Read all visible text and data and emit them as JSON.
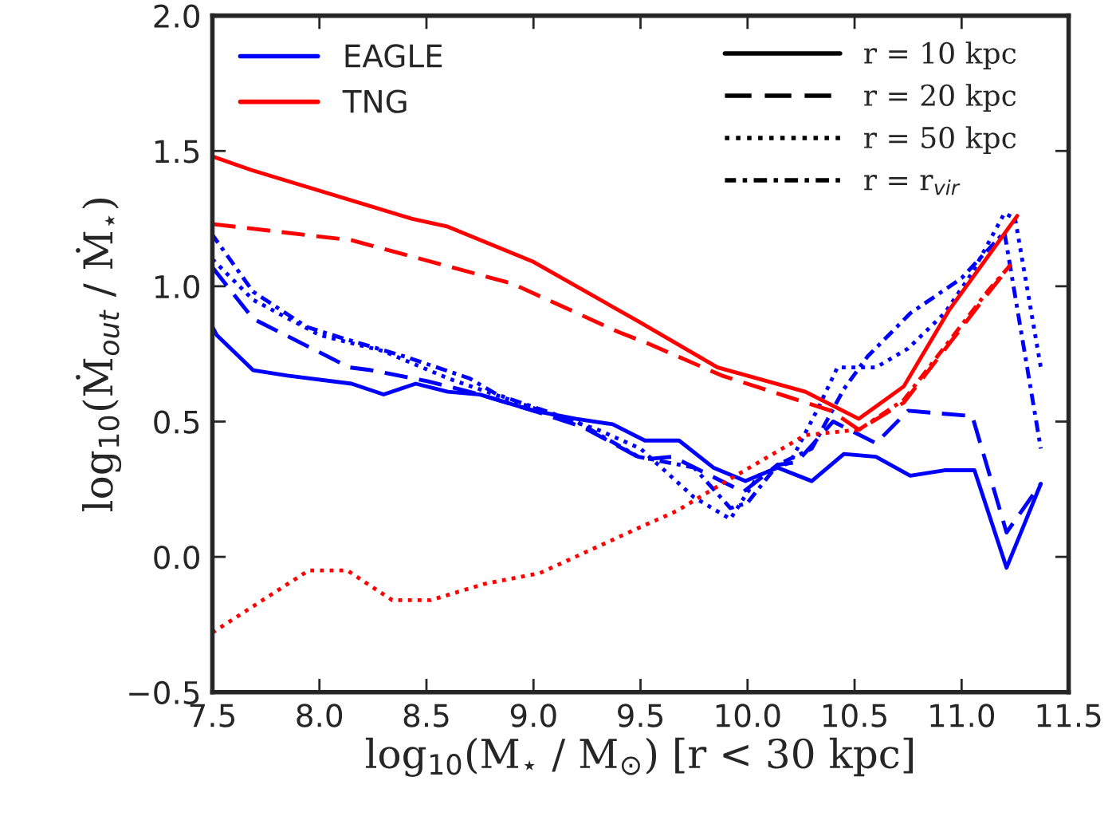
{
  "chart_data": {
    "type": "line",
    "xlabel": "log$_{10}$(M$_{⋆}$ / M$_{⊙}$) [r < 30 kpc]",
    "ylabel": "log$_{10}$(Ṁ$_{out}$ / Ṁ$_{⋆}$)",
    "xlim": [
      7.5,
      11.5
    ],
    "xticks": [
      7.5,
      {
        "value": 8,
        "label": "8.0"
      },
      8.5,
      {
        "value": 9,
        "label": "9.0"
      },
      9.5,
      {
        "value": 10,
        "label": "10.0"
      },
      10.5,
      {
        "value": 11,
        "label": "11.0"
      },
      11.5
    ],
    "ylim": [
      -0.5,
      2.0
    ],
    "yticks": [
      {
        "value": -0.5,
        "label": "−0.5"
      },
      {
        "value": 0,
        "label": "0.0"
      },
      0.5,
      {
        "value": 1,
        "label": "1.0"
      },
      1.5,
      {
        "value": 2,
        "label": "2.0"
      }
    ],
    "grid": false,
    "legend": "top",
    "series": [
      {
        "color": "#0000ff",
        "line_style": "solid",
        "x": [
          7.5,
          7.52,
          7.69,
          7.85,
          8.15,
          8.3,
          8.45,
          8.6,
          8.75,
          9.0,
          9.2,
          9.37,
          9.52,
          9.68,
          9.84,
          9.99,
          10.14,
          10.3,
          10.45,
          10.6,
          10.76,
          10.92,
          11.06,
          11.21,
          11.37
        ],
        "values": [
          0.85,
          0.82,
          0.69,
          0.67,
          0.64,
          0.6,
          0.64,
          0.61,
          0.6,
          0.54,
          0.51,
          0.49,
          0.43,
          0.43,
          0.33,
          0.28,
          0.33,
          0.28,
          0.38,
          0.37,
          0.3,
          0.32,
          0.32,
          -0.04,
          0.27
        ]
      },
      {
        "color": "#0000ff",
        "line_style": "dashed",
        "x": [
          7.5,
          7.69,
          8.14,
          8.24,
          8.5,
          8.75,
          9.0,
          9.23,
          9.51,
          9.65,
          9.98,
          10.14,
          10.23,
          10.4,
          10.6,
          10.75,
          11.05,
          11.21,
          11.37
        ],
        "values": [
          1.07,
          0.88,
          0.7,
          0.69,
          0.65,
          0.6,
          0.54,
          0.48,
          0.36,
          0.37,
          0.24,
          0.34,
          0.35,
          0.5,
          0.42,
          0.54,
          0.52,
          0.09,
          0.27
        ]
      },
      {
        "color": "#0000ff",
        "line_style": "dotted",
        "x": [
          7.5,
          7.69,
          8.0,
          8.3,
          8.6,
          9.0,
          9.3,
          9.5,
          9.75,
          9.92,
          10.05,
          10.2,
          10.33,
          10.42,
          10.6,
          10.75,
          10.92,
          11.05,
          11.2,
          11.25,
          11.37
        ],
        "values": [
          1.1,
          0.95,
          0.82,
          0.76,
          0.66,
          0.55,
          0.47,
          0.4,
          0.22,
          0.14,
          0.3,
          0.35,
          0.55,
          0.7,
          0.7,
          0.77,
          0.9,
          1.05,
          1.27,
          1.25,
          0.7
        ]
      },
      {
        "color": "#0000ff",
        "line_style": "dashdot",
        "x": [
          7.5,
          7.69,
          7.94,
          8.1,
          8.4,
          8.7,
          8.83,
          9.2,
          9.49,
          9.75,
          9.92,
          10.0,
          10.14,
          10.3,
          10.45,
          10.56,
          10.76,
          11.0,
          11.2,
          11.37
        ],
        "values": [
          1.19,
          0.98,
          0.85,
          0.81,
          0.74,
          0.66,
          0.6,
          0.5,
          0.37,
          0.33,
          0.18,
          0.2,
          0.34,
          0.4,
          0.62,
          0.74,
          0.9,
          1.03,
          1.2,
          0.4
        ]
      },
      {
        "color": "#ff0000",
        "line_style": "solid",
        "x": [
          7.5,
          7.68,
          8.43,
          8.6,
          9.0,
          9.49,
          9.86,
          10.27,
          10.52,
          10.73,
          10.94,
          11.26
        ],
        "values": [
          1.48,
          1.43,
          1.25,
          1.22,
          1.09,
          0.87,
          0.7,
          0.61,
          0.51,
          0.63,
          0.91,
          1.26
        ]
      },
      {
        "color": "#ff0000",
        "line_style": "dashed",
        "x": [
          7.5,
          8.15,
          8.9,
          9.4,
          9.53,
          9.88,
          10.39,
          10.52,
          10.73,
          11.12,
          11.23
        ],
        "values": [
          1.23,
          1.17,
          1.01,
          0.83,
          0.79,
          0.67,
          0.54,
          0.47,
          0.57,
          0.97,
          1.08
        ]
      },
      {
        "color": "#ff0000",
        "line_style": "dotted",
        "x": [
          7.5,
          7.95,
          8.13,
          8.34,
          8.52,
          8.77,
          9.03,
          9.5,
          9.67,
          9.88,
          10.27,
          10.52
        ],
        "values": [
          -0.28,
          -0.05,
          -0.05,
          -0.16,
          -0.16,
          -0.1,
          -0.06,
          0.11,
          0.17,
          0.27,
          0.45,
          0.47
        ]
      },
      {
        "color": "#ff0000",
        "line_style": "dashdot",
        "x": [
          10.52,
          10.73,
          11.12,
          11.23
        ],
        "values": [
          0.47,
          0.58,
          0.98,
          1.08
        ]
      },
      {
        "name": "EAGLE",
        "color": "#0000ff",
        "line_style": "solid"
      },
      {
        "name": "TNG",
        "color": "#ff0000",
        "line_style": "solid"
      },
      {
        "name": "r = 10 kpc",
        "color": "#000000",
        "line_style": "solid"
      },
      {
        "name": "r = 20 kpc",
        "color": "#000000",
        "line_style": "dashed"
      },
      {
        "name": "r = 50 kpc",
        "color": "#000000",
        "line_style": "dotted"
      },
      {
        "name": "r = r$_{vir}$",
        "color": "#000000",
        "line_style": "dashdot"
      }
    ]
  }
}
